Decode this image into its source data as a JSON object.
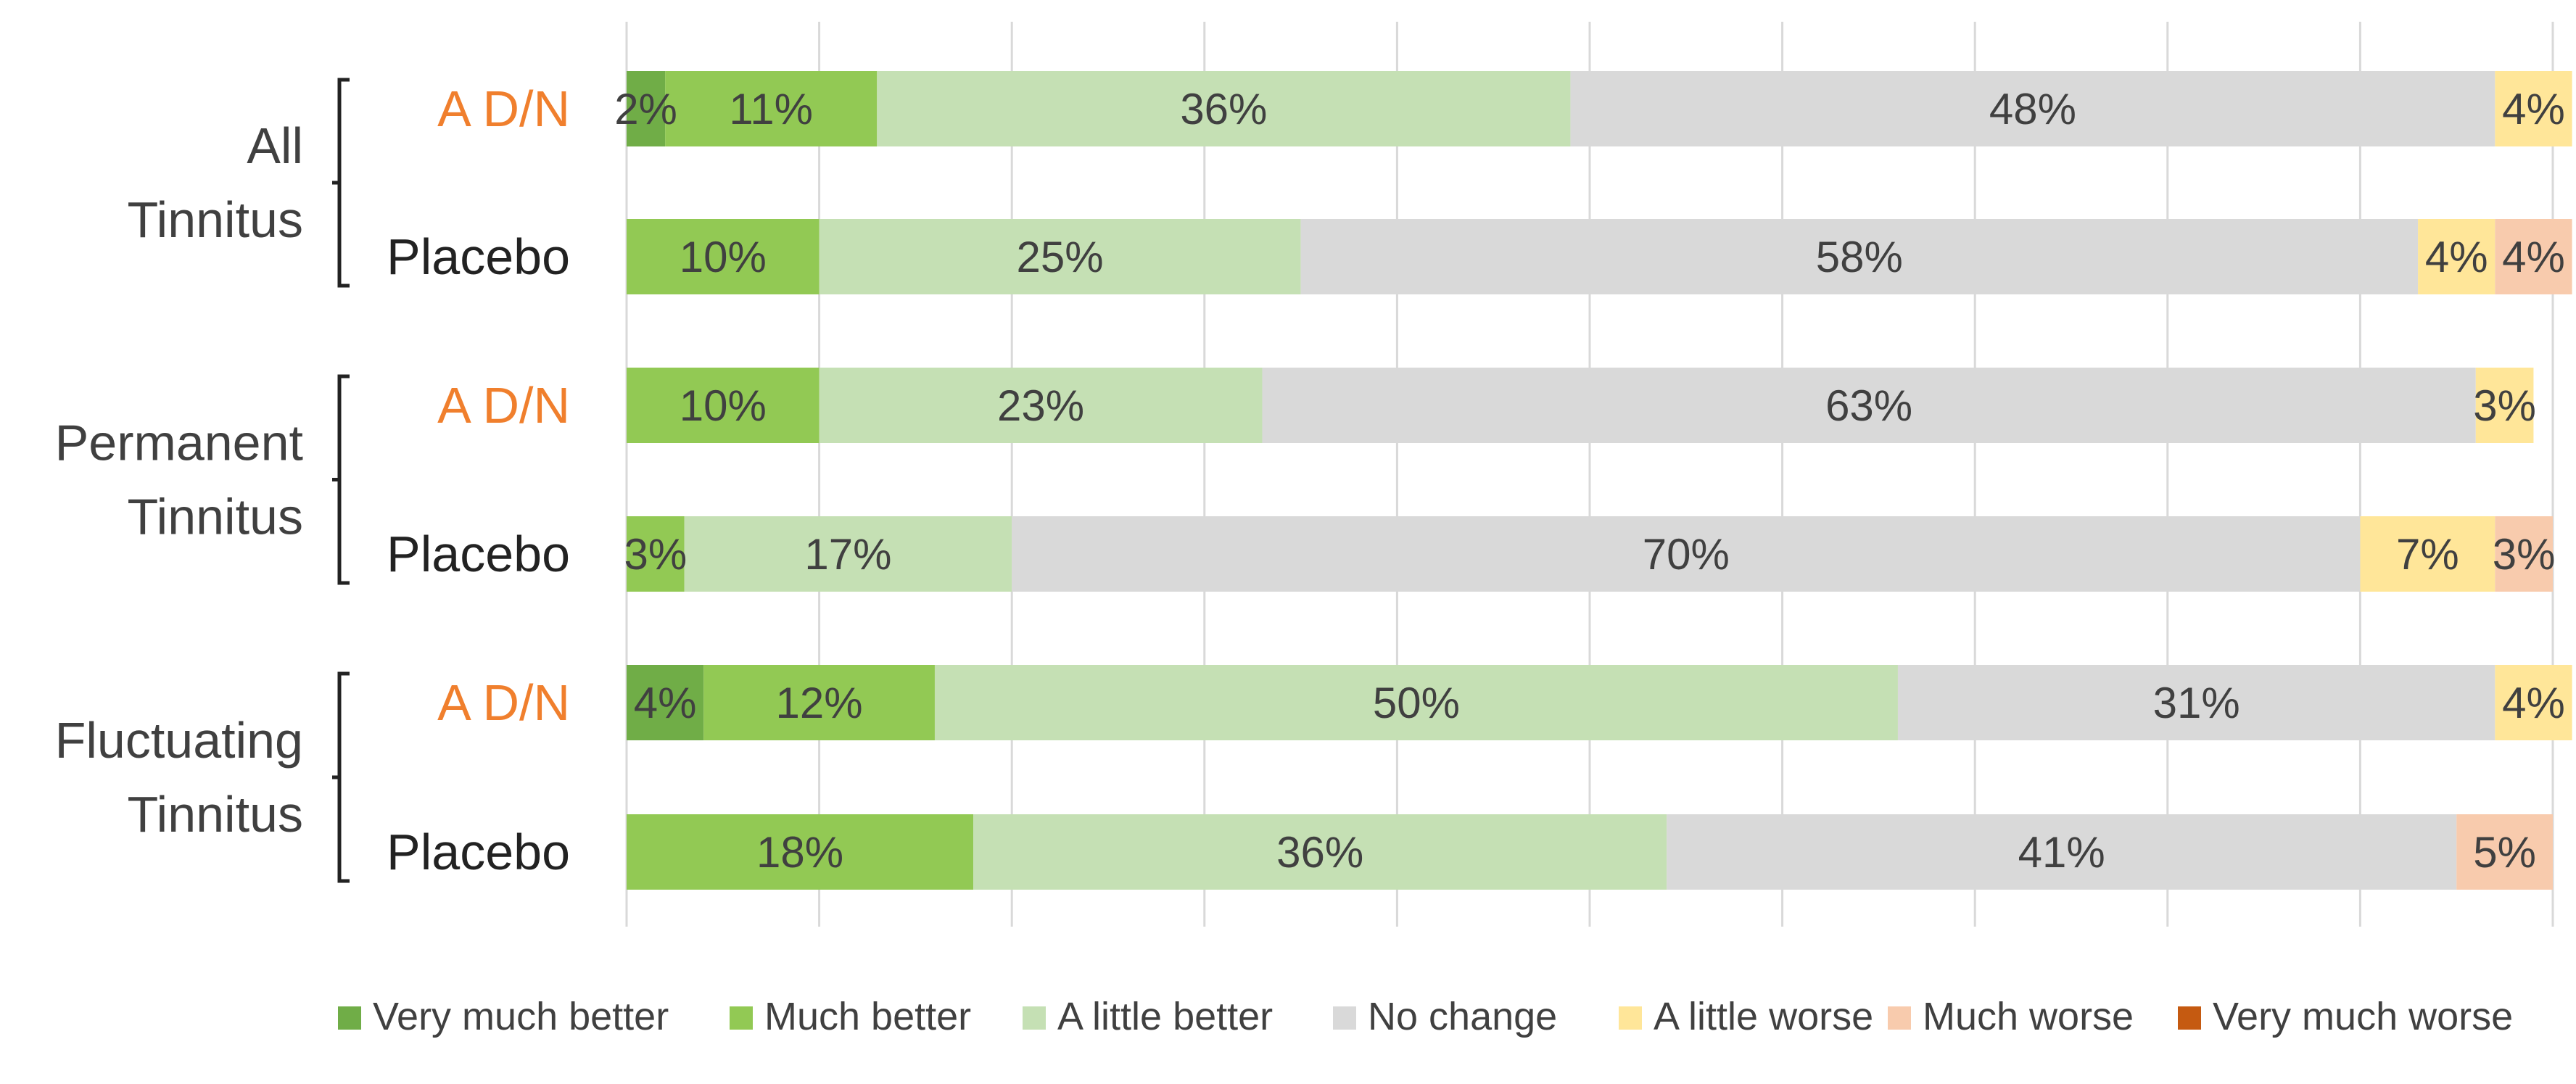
{
  "chart_data": {
    "type": "bar",
    "orientation": "horizontal",
    "stacked": true,
    "xlim": [
      0,
      100
    ],
    "grid": true,
    "legend_position": "bottom",
    "groups": [
      {
        "label_lines": [
          "All",
          "Tinnitus"
        ]
      },
      {
        "label_lines": [
          "Permanent",
          "Tinnitus"
        ]
      },
      {
        "label_lines": [
          "Fluctuating",
          "Tinnitus"
        ]
      }
    ],
    "categories": [
      {
        "group": 0,
        "label": "A D/N",
        "color": "#F07F2D"
      },
      {
        "group": 0,
        "label": "Placebo",
        "color": "#222222"
      },
      {
        "group": 1,
        "label": "A D/N",
        "color": "#F07F2D"
      },
      {
        "group": 1,
        "label": "Placebo",
        "color": "#222222"
      },
      {
        "group": 2,
        "label": "A D/N",
        "color": "#F07F2D"
      },
      {
        "group": 2,
        "label": "Placebo",
        "color": "#222222"
      }
    ],
    "series": [
      {
        "name": "Very much better",
        "color": "#70AD47",
        "values": [
          2,
          0,
          0,
          0,
          4,
          0
        ]
      },
      {
        "name": "Much better",
        "color": "#92C954",
        "values": [
          11,
          10,
          10,
          3,
          12,
          18
        ]
      },
      {
        "name": "A little better",
        "color": "#C5E0B4",
        "values": [
          36,
          25,
          23,
          17,
          50,
          36
        ]
      },
      {
        "name": "No change",
        "color": "#D9D9D9",
        "values": [
          48,
          58,
          63,
          70,
          31,
          41
        ]
      },
      {
        "name": "A little worse",
        "color": "#FFE699",
        "values": [
          4,
          4,
          3,
          7,
          4,
          0
        ]
      },
      {
        "name": "Much worse",
        "color": "#F8CBAD",
        "values": [
          0,
          4,
          0,
          3,
          0,
          5
        ]
      },
      {
        "name": "Very much worse",
        "color": "#C55A11",
        "values": [
          0,
          0,
          0,
          0,
          0,
          0
        ]
      }
    ],
    "value_suffix": "%"
  }
}
